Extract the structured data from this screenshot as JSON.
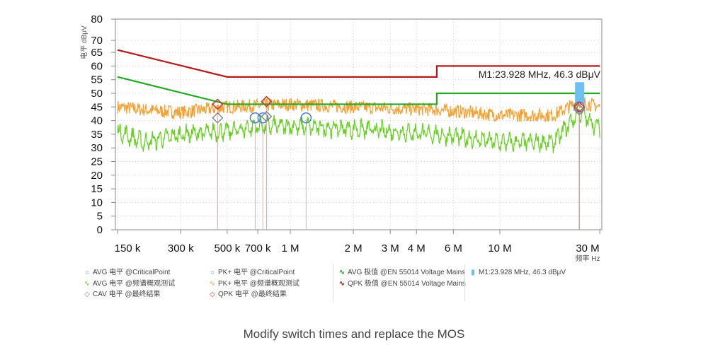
{
  "chart_data": {
    "type": "line",
    "xscale": "log",
    "xlabel": "频率 Hz",
    "ylabel": "电平 dBμV",
    "xlim": [
      150000,
      30000000
    ],
    "ylim": [
      0,
      80
    ],
    "grid": true,
    "x_ticks": [
      {
        "v": 150000,
        "label": "150 k"
      },
      {
        "v": 300000,
        "label": "300 k"
      },
      {
        "v": 500000,
        "label": "500 k"
      },
      {
        "v": 700000,
        "label": "700 k"
      },
      {
        "v": 1000000,
        "label": "1 M"
      },
      {
        "v": 2000000,
        "label": "2 M"
      },
      {
        "v": 3000000,
        "label": "3 M"
      },
      {
        "v": 4000000,
        "label": "4 M"
      },
      {
        "v": 6000000,
        "label": "6 M"
      },
      {
        "v": 10000000,
        "label": "10 M"
      },
      {
        "v": 30000000,
        "label": "30 M"
      }
    ],
    "y_ticks": [
      0,
      5,
      10,
      15,
      20,
      25,
      30,
      35,
      40,
      45,
      50,
      55,
      60,
      65,
      70,
      80
    ],
    "series": [
      {
        "name": "QPK 极值 @EN 55014 Voltage Mains",
        "color": "#b81818",
        "x": [
          150000,
          500000,
          5000000,
          5000000,
          30000000
        ],
        "y": [
          66,
          56,
          56,
          60,
          60
        ]
      },
      {
        "name": "AVG 极值 @EN 55014 Voltage Mains",
        "color": "#22aa22",
        "x": [
          150000,
          500000,
          5000000,
          5000000,
          30000000
        ],
        "y": [
          56,
          46,
          46,
          50,
          50
        ]
      },
      {
        "name": "PK+ 电平 @频谱概观测试",
        "color": "#f5a030",
        "x": [
          150000,
          200000,
          300000,
          500000,
          1000000,
          2000000,
          5000000,
          10000000,
          18000000,
          23900000,
          30000000
        ],
        "y": [
          45,
          44,
          43,
          45,
          46,
          45,
          44,
          42,
          42,
          47,
          45
        ]
      },
      {
        "name": "AVG 电平 @频谱概观测试",
        "color": "#66d020",
        "x": [
          150000,
          200000,
          300000,
          500000,
          700000,
          1000000,
          2000000,
          5000000,
          10000000,
          18000000,
          23900000,
          30000000
        ],
        "y": [
          36,
          32,
          35,
          36,
          38,
          38,
          37,
          35,
          32,
          32,
          43,
          37
        ]
      }
    ],
    "points": [
      {
        "name": "PK+ 电平 @CriticalPoint",
        "shape": "circle",
        "color": "#4a7fd0",
        "x": [
          680000,
          740000,
          1190000,
          23928000
        ],
        "y": [
          41,
          41,
          41,
          45
        ]
      },
      {
        "name": "QPK 电平 @最终结果",
        "shape": "diamond",
        "color": "#d03030",
        "x": [
          450000,
          770000,
          23928000
        ],
        "y": [
          46,
          47,
          45
        ]
      },
      {
        "name": "CAV 电平 @最终结果",
        "shape": "diamond",
        "color": "#888888",
        "x": [
          450000,
          770000,
          23928000
        ],
        "y": [
          41,
          41.5,
          44
        ]
      }
    ],
    "marker": {
      "label": "M1:23.928 MHz, 46.3 dBμV",
      "x": 23928000,
      "y": 46.3,
      "color": "#6ec0f0"
    }
  },
  "legend": {
    "col1": [
      "AVG 电平 @CriticalPoint",
      "AVG 电平 @频谱概观测试",
      "CAV 电平 @最终结果"
    ],
    "col2": [
      "PK+ 电平 @CriticalPoint",
      "PK+ 电平 @频谱概观测试",
      "QPK 电平 @最终结果"
    ],
    "col3": [
      "AVG 极值 @EN 55014 Voltage Mains",
      "QPK 极值 @EN 55014 Voltage Mains"
    ],
    "col4": [
      "M1:23.928 MHz, 46.3 dBμV"
    ]
  },
  "caption": "Modify switch times and replace the MOS"
}
